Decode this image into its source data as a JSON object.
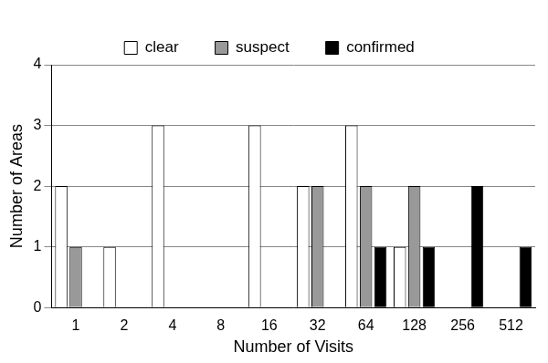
{
  "chart_data": {
    "type": "bar",
    "x_label": "Number of Visits",
    "y_label": "Number of Areas",
    "categories": [
      "1",
      "2",
      "4",
      "8",
      "16",
      "32",
      "64",
      "128",
      "256",
      "512"
    ],
    "series": [
      {
        "name": "clear",
        "color": "#ffffff",
        "values": [
          2,
          1,
          3,
          0,
          3,
          2,
          3,
          1,
          0,
          0
        ]
      },
      {
        "name": "suspect",
        "color": "#999999",
        "values": [
          1,
          0,
          0,
          0,
          0,
          2,
          2,
          2,
          0,
          0
        ]
      },
      {
        "name": "confirmed",
        "color": "#000000",
        "values": [
          0,
          0,
          0,
          0,
          0,
          0,
          1,
          1,
          2,
          1
        ]
      }
    ],
    "ylim": [
      0,
      4
    ],
    "yticks": [
      0,
      1,
      2,
      3,
      4
    ],
    "grid": true,
    "legend": "top"
  }
}
